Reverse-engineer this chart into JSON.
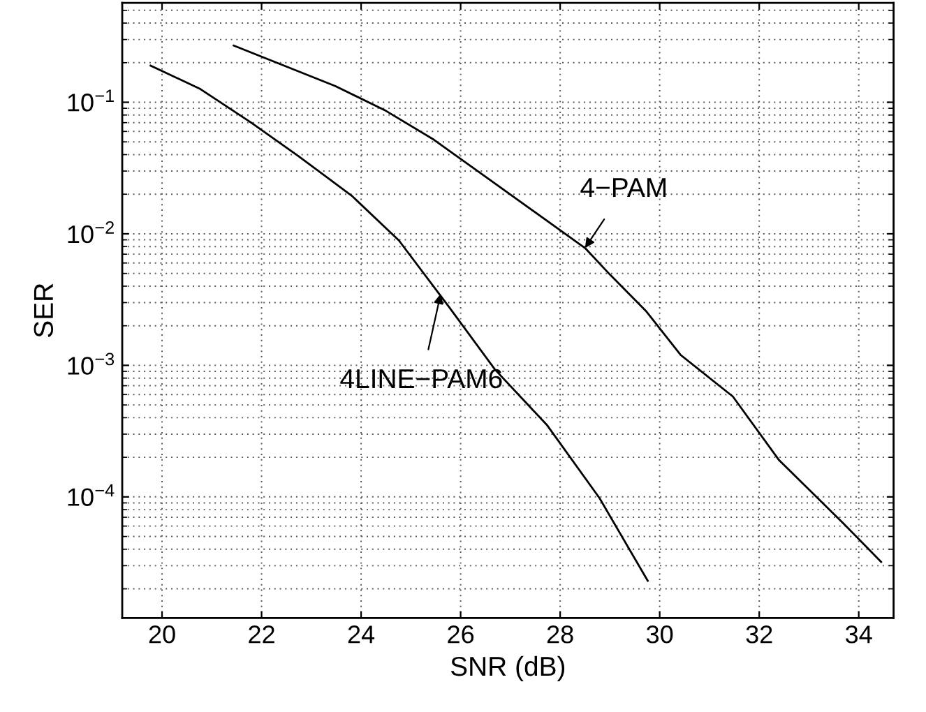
{
  "chart_data": {
    "type": "line",
    "xlabel": "SNR (dB)",
    "ylabel": "SER",
    "log": "y",
    "grid": true,
    "xlim": [
      19.2,
      34.7
    ],
    "xticks": [
      20,
      22,
      24,
      26,
      28,
      30,
      32,
      34
    ],
    "ylim": [
      1.2e-05,
      0.57
    ],
    "yticks": [
      {
        "value": 0.0001,
        "label": "10$^{−4}$"
      },
      {
        "value": 0.001,
        "label": "10$^{−3}$"
      },
      {
        "value": 0.01,
        "label": "10$^{−2}$"
      },
      {
        "value": 0.1,
        "label": "10$^{−1}$"
      }
    ],
    "series": [
      {
        "color": "#000000",
        "x": [
          19.77,
          20.77,
          21.79,
          22.74,
          23.81,
          24.76,
          25.76,
          26.69,
          27.74,
          28.79,
          29.76
        ],
        "values": [
          0.19,
          0.126,
          0.07,
          0.039,
          0.0195,
          0.0089,
          0.0028,
          0.00093,
          0.00035,
          9.8e-05,
          2.3e-05
        ]
      },
      {
        "color": "#000000",
        "x": [
          21.44,
          23.48,
          24.5,
          25.46,
          28.5,
          29.0,
          29.72,
          30.42,
          31.47,
          32.4,
          33.69,
          34.45
        ],
        "values": [
          0.27,
          0.133,
          0.086,
          0.052,
          0.0078,
          0.0049,
          0.0026,
          0.0012,
          0.00058,
          0.00019,
          6.3e-05,
          3.2e-05
        ]
      }
    ],
    "annotations": [
      {
        "text": "4−PAM",
        "x": 28.5,
        "y": 0.0078
      },
      {
        "text": "4LINE−PAM6",
        "x": 25.6,
        "y": 0.0035
      }
    ]
  }
}
